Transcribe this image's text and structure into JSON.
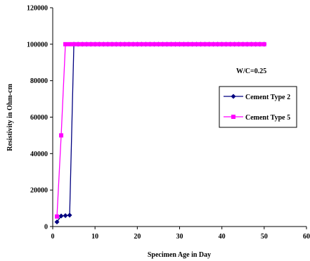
{
  "chart_data": {
    "type": "line",
    "title": "",
    "xlabel": "Specimen Age in Day",
    "ylabel": "Resistivity in Ohm-cm",
    "xlim": [
      0,
      60
    ],
    "ylim": [
      0,
      120000
    ],
    "xticks": [
      0,
      10,
      20,
      30,
      40,
      50,
      60
    ],
    "yticks": [
      0,
      20000,
      40000,
      60000,
      80000,
      100000,
      120000
    ],
    "xtick_labels": [
      "0",
      "10",
      "20",
      "30",
      "40",
      "50",
      "60"
    ],
    "ytick_labels": [
      "0",
      "20000",
      "40000",
      "60000",
      "80000",
      "100000",
      "120000"
    ],
    "grid": false,
    "legend_placement": "right",
    "annotation": "W/C=0.25",
    "series": [
      {
        "name": "Cement Type 2",
        "color": "#000080",
        "marker": "diamond",
        "x": [
          1,
          2,
          3,
          4,
          5,
          6,
          7,
          8,
          9,
          10,
          11,
          12,
          13,
          14,
          15,
          16,
          17,
          18,
          19,
          20,
          21,
          22,
          23,
          24,
          25,
          26,
          27,
          28,
          29,
          30,
          31,
          32,
          33,
          34,
          35,
          36,
          37,
          38,
          39,
          40,
          41,
          42,
          43,
          44,
          45,
          46,
          47,
          48,
          49,
          50
        ],
        "y": [
          2500,
          5800,
          6000,
          6200,
          100000,
          100000,
          100000,
          100000,
          100000,
          100000,
          100000,
          100000,
          100000,
          100000,
          100000,
          100000,
          100000,
          100000,
          100000,
          100000,
          100000,
          100000,
          100000,
          100000,
          100000,
          100000,
          100000,
          100000,
          100000,
          100000,
          100000,
          100000,
          100000,
          100000,
          100000,
          100000,
          100000,
          100000,
          100000,
          100000,
          100000,
          100000,
          100000,
          100000,
          100000,
          100000,
          100000,
          100000,
          100000,
          100000
        ]
      },
      {
        "name": "Cement Type 5",
        "color": "#FF00FF",
        "marker": "square",
        "x": [
          1,
          2,
          3,
          4,
          5,
          6,
          7,
          8,
          9,
          10,
          11,
          12,
          13,
          14,
          15,
          16,
          17,
          18,
          19,
          20,
          21,
          22,
          23,
          24,
          25,
          26,
          27,
          28,
          29,
          30,
          31,
          32,
          33,
          34,
          35,
          36,
          37,
          38,
          39,
          40,
          41,
          42,
          43,
          44,
          45,
          46,
          47,
          48,
          49,
          50
        ],
        "y": [
          5500,
          50000,
          100000,
          100000,
          100000,
          100000,
          100000,
          100000,
          100000,
          100000,
          100000,
          100000,
          100000,
          100000,
          100000,
          100000,
          100000,
          100000,
          100000,
          100000,
          100000,
          100000,
          100000,
          100000,
          100000,
          100000,
          100000,
          100000,
          100000,
          100000,
          100000,
          100000,
          100000,
          100000,
          100000,
          100000,
          100000,
          100000,
          100000,
          100000,
          100000,
          100000,
          100000,
          100000,
          100000,
          100000,
          100000,
          100000,
          100000,
          100000
        ]
      }
    ]
  }
}
